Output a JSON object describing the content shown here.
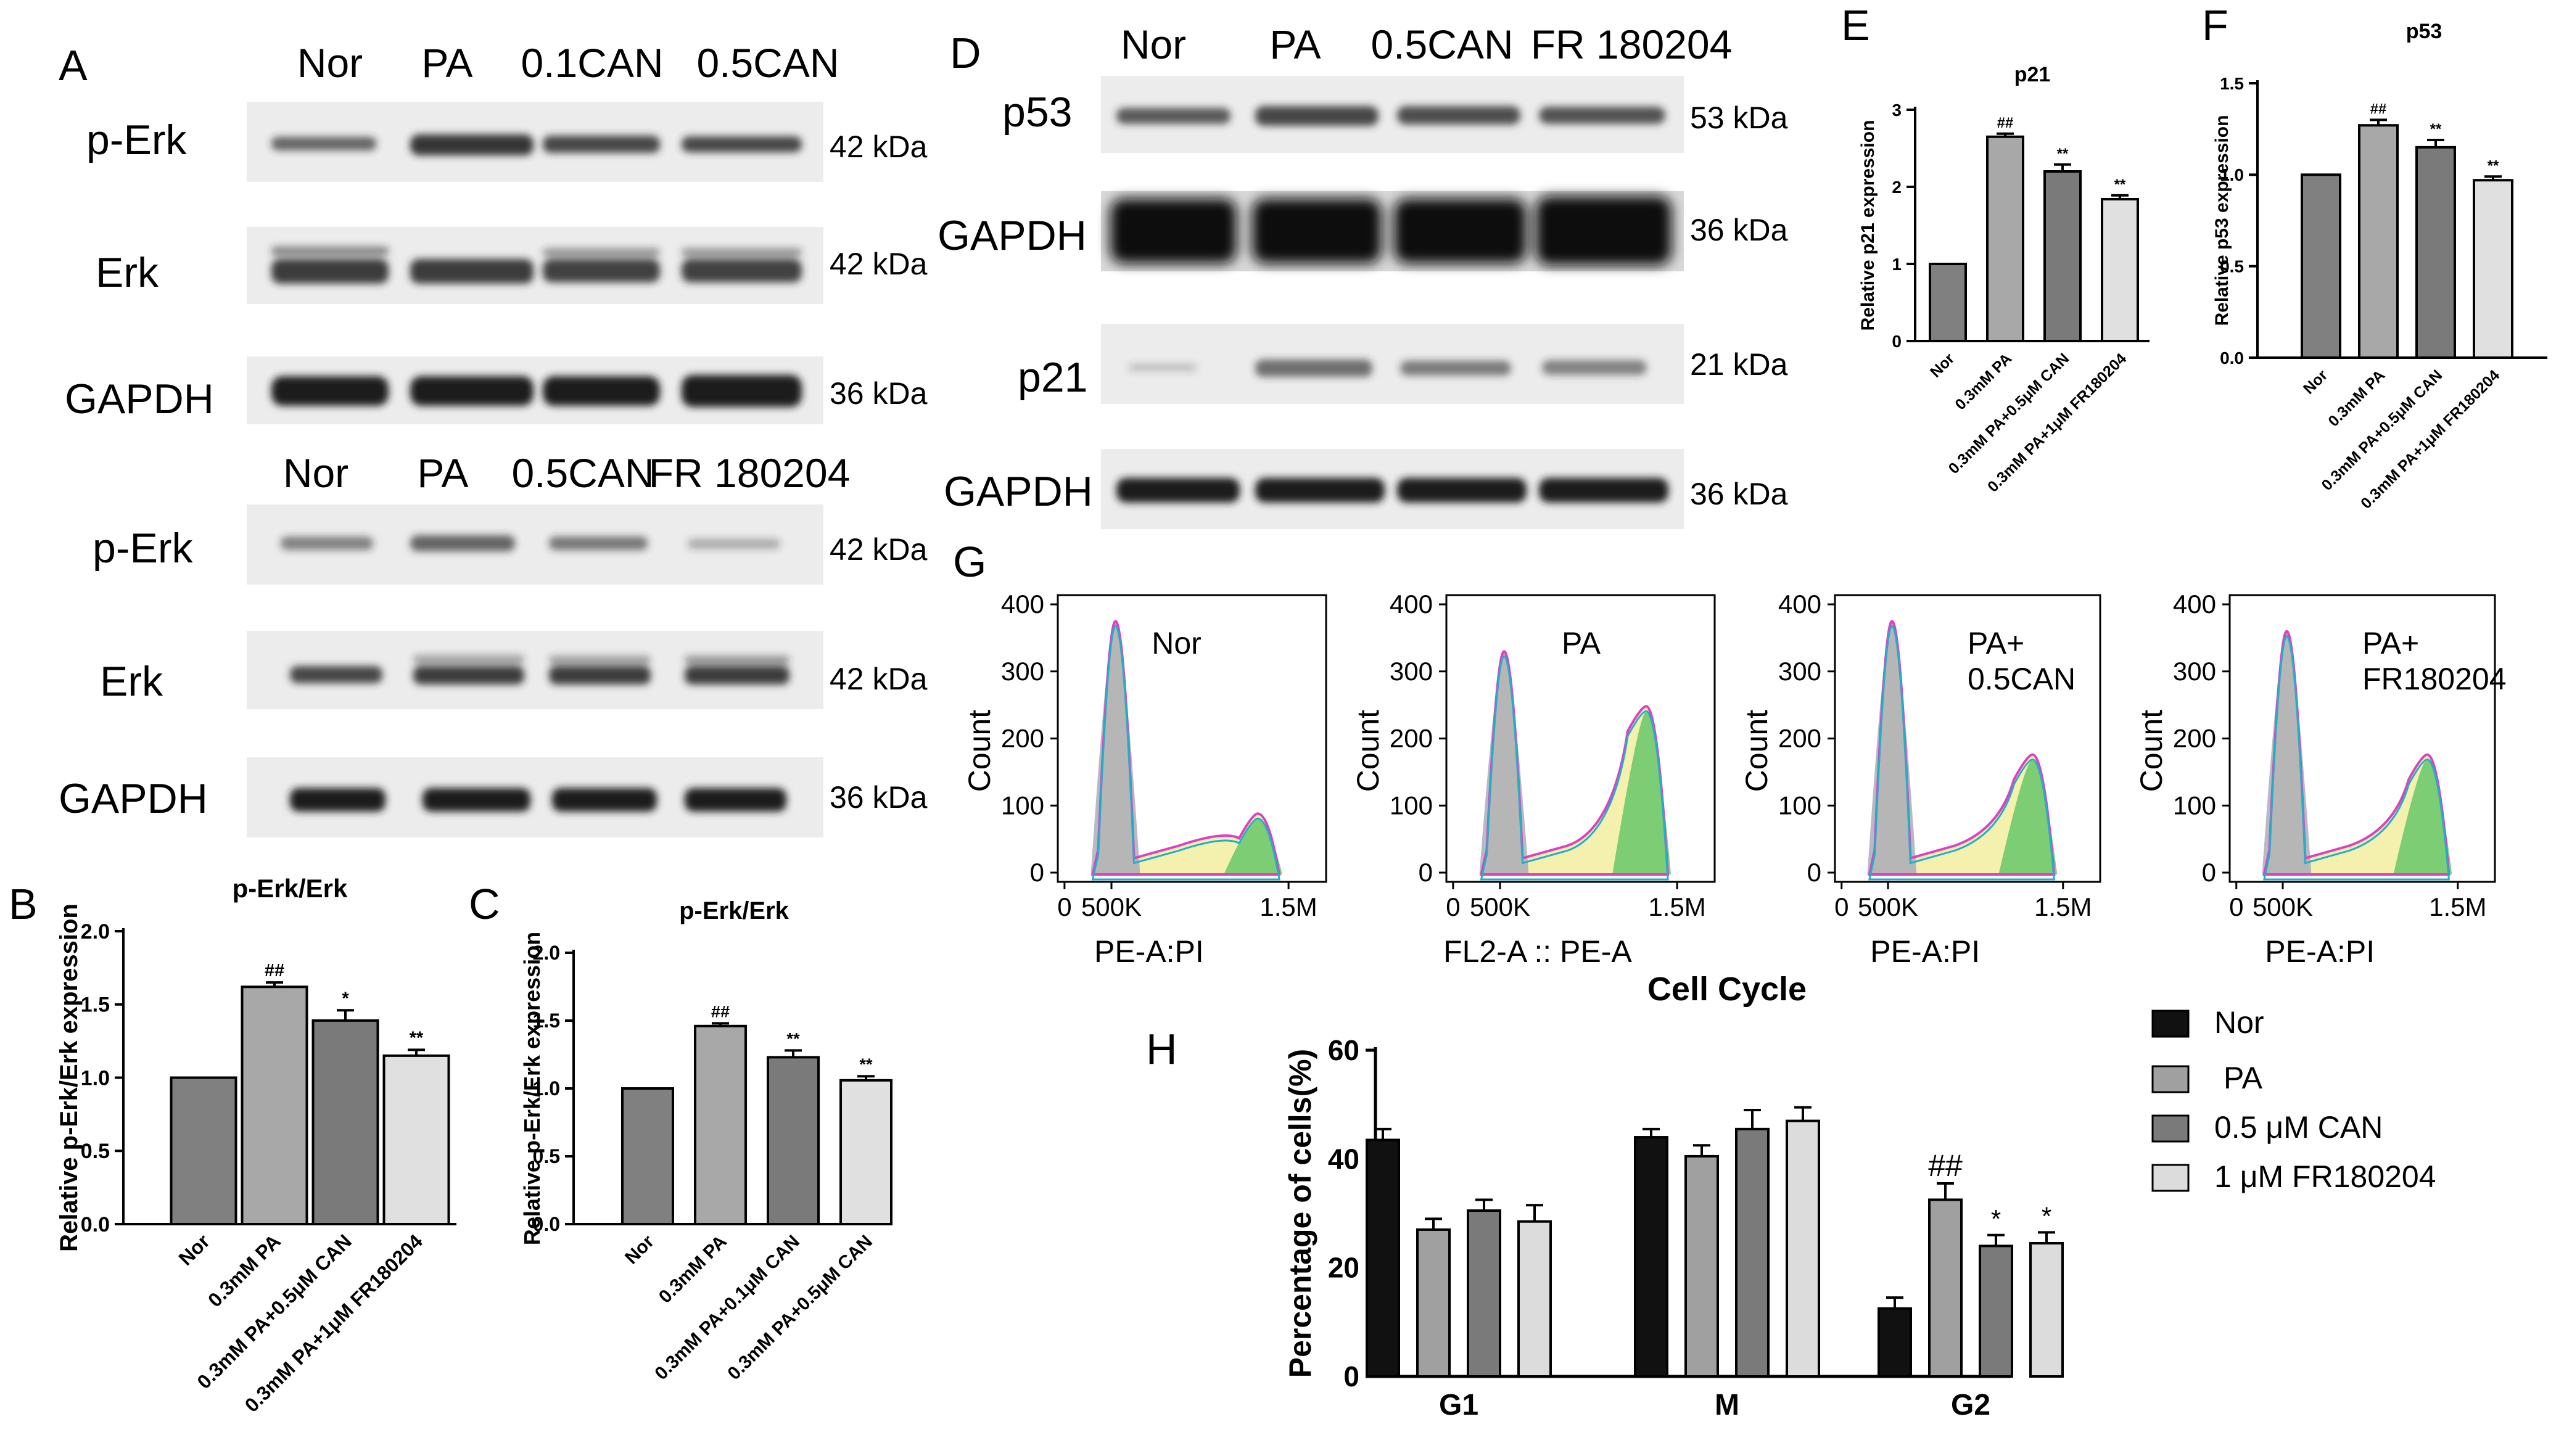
{
  "panel_letters": {
    "A": "A",
    "B": "B",
    "C": "C",
    "D": "D",
    "E": "E",
    "F": "F",
    "G": "G",
    "H": "H"
  },
  "blots_A_top": {
    "lanes": [
      "Nor",
      "PA",
      "0.1CAN",
      "0.5CAN"
    ],
    "rows": [
      {
        "protein": "p-Erk",
        "kda": "42 kDa"
      },
      {
        "protein": "Erk",
        "kda": "42 kDa"
      },
      {
        "protein": "GAPDH",
        "kda": "36 kDa"
      }
    ]
  },
  "blots_A_bottom": {
    "lanes": [
      "Nor",
      "PA",
      "0.5CAN",
      "FR 180204"
    ],
    "rows": [
      {
        "protein": "p-Erk",
        "kda": "42 kDa"
      },
      {
        "protein": "Erk",
        "kda": "42 kDa"
      },
      {
        "protein": "GAPDH",
        "kda": "36 kDa"
      }
    ]
  },
  "blots_D": {
    "lanes": [
      "Nor",
      "PA",
      "0.5CAN",
      "FR 180204"
    ],
    "rows": [
      {
        "protein": "p53",
        "kda": "53 kDa"
      },
      {
        "protein": "GAPDH",
        "kda": "36 kDa"
      },
      {
        "protein": "p21",
        "kda": "21 kDa"
      },
      {
        "protein": "GAPDH",
        "kda": "36 kDa"
      }
    ]
  },
  "flow_G": {
    "panels": [
      {
        "label": [
          "Nor"
        ],
        "xlabel": "PE-A:PI"
      },
      {
        "label": [
          "PA"
        ],
        "xlabel": "FL2-A :: PE-A"
      },
      {
        "label": [
          "PA+",
          "0.5CAN"
        ],
        "xlabel": "PE-A:PI"
      },
      {
        "label": [
          "PA+",
          "FR180204"
        ],
        "xlabel": "PE-A:PI"
      }
    ],
    "ylabel": "Count",
    "yticks": [
      "0",
      "100",
      "200",
      "300",
      "400"
    ],
    "xticks": [
      "0",
      "500K",
      "1.5M"
    ]
  },
  "chart_data": [
    {
      "panel": "B",
      "type": "bar",
      "title": "p-Erk/Erk",
      "ylabel": "Relative p-Erk/Erk expression",
      "categories": [
        "Nor",
        "0.3mM PA",
        "0.3mM PA+0.5μM CAN",
        "0.3mM PA+1μM FR180204"
      ],
      "values": [
        1.0,
        1.62,
        1.39,
        1.15
      ],
      "errors": [
        0,
        0.03,
        0.07,
        0.04
      ],
      "significance": [
        "",
        "##",
        "*",
        "**"
      ],
      "colors": [
        "#808080",
        "#a8a8a8",
        "#7a7a7a",
        "#e0e0e0"
      ],
      "ylim": [
        0,
        2.0
      ],
      "yticks": [
        "0.0",
        "0.5",
        "1.0",
        "1.5",
        "2.0"
      ]
    },
    {
      "panel": "C",
      "type": "bar",
      "title": "p-Erk/Erk",
      "ylabel": "Relative p-Erk/Erk expression",
      "categories": [
        "Nor",
        "0.3mM PA",
        "0.3mM PA+0.1μM CAN",
        "0.3mM PA+0.5μM CAN"
      ],
      "values": [
        1.0,
        1.46,
        1.23,
        1.06
      ],
      "errors": [
        0,
        0.02,
        0.05,
        0.03
      ],
      "significance": [
        "",
        "##",
        "**",
        "**"
      ],
      "colors": [
        "#808080",
        "#a8a8a8",
        "#7a7a7a",
        "#e0e0e0"
      ],
      "ylim": [
        0,
        2.0
      ],
      "yticks": [
        "0.0",
        "0.5",
        "1.0",
        "1.5",
        "2.0"
      ]
    },
    {
      "panel": "E",
      "type": "bar",
      "title": "p21",
      "ylabel": "Relative p21 expression",
      "categories": [
        "Nor",
        "0.3mM PA",
        "0.3mM PA+0.5μM CAN",
        "0.3mM PA+1μM FR180204"
      ],
      "values": [
        1.0,
        2.65,
        2.2,
        1.84
      ],
      "errors": [
        0,
        0.04,
        0.09,
        0.05
      ],
      "significance": [
        "",
        "##",
        "**",
        "**"
      ],
      "colors": [
        "#808080",
        "#a8a8a8",
        "#7a7a7a",
        "#e0e0e0"
      ],
      "ylim": [
        0,
        3
      ],
      "yticks": [
        "0",
        "1",
        "2",
        "3"
      ]
    },
    {
      "panel": "F",
      "type": "bar",
      "title": "p53",
      "ylabel": "Relative p53 expression",
      "categories": [
        "Nor",
        "0.3mM PA",
        "0.3mM PA+0.5μM CAN",
        "0.3mM PA+1μM FR180204"
      ],
      "values": [
        1.0,
        1.27,
        1.15,
        0.97
      ],
      "errors": [
        0,
        0.03,
        0.04,
        0.02
      ],
      "significance": [
        "",
        "##",
        "**",
        "**"
      ],
      "colors": [
        "#808080",
        "#a8a8a8",
        "#7a7a7a",
        "#e0e0e0"
      ],
      "ylim": [
        0,
        1.5
      ],
      "yticks": [
        "0.0",
        "0.5",
        "1.0",
        "1.5"
      ]
    },
    {
      "panel": "H",
      "type": "bar",
      "title": "Cell Cycle",
      "ylabel": "Percentage of cells(%)",
      "categories": [
        "G1",
        "M",
        "G2"
      ],
      "series": [
        {
          "name": "Nor",
          "color": "#111111",
          "values": [
            43.5,
            44.0,
            12.5
          ],
          "errors": [
            2.0,
            1.5,
            2.0
          ],
          "significance": [
            "",
            "",
            ""
          ]
        },
        {
          "name": "PA",
          "color": "#a0a0a0",
          "values": [
            27.0,
            40.5,
            32.5
          ],
          "errors": [
            2.0,
            2.0,
            3.0
          ],
          "significance": [
            "",
            "",
            "##"
          ]
        },
        {
          "name": "0.5 μM CAN",
          "color": "#7a7a7a",
          "values": [
            30.5,
            45.5,
            24.0
          ],
          "errors": [
            2.0,
            3.5,
            2.0
          ],
          "significance": [
            "",
            "",
            "*"
          ]
        },
        {
          "name": "1 μM FR180204",
          "color": "#dcdcdc",
          "values": [
            28.5,
            47.0,
            24.5
          ],
          "errors": [
            3.0,
            2.5,
            2.0
          ],
          "significance": [
            "",
            "",
            "*"
          ]
        }
      ],
      "ylim": [
        0,
        60
      ],
      "yticks": [
        "0",
        "20",
        "40",
        "60"
      ],
      "legend": "right"
    }
  ]
}
